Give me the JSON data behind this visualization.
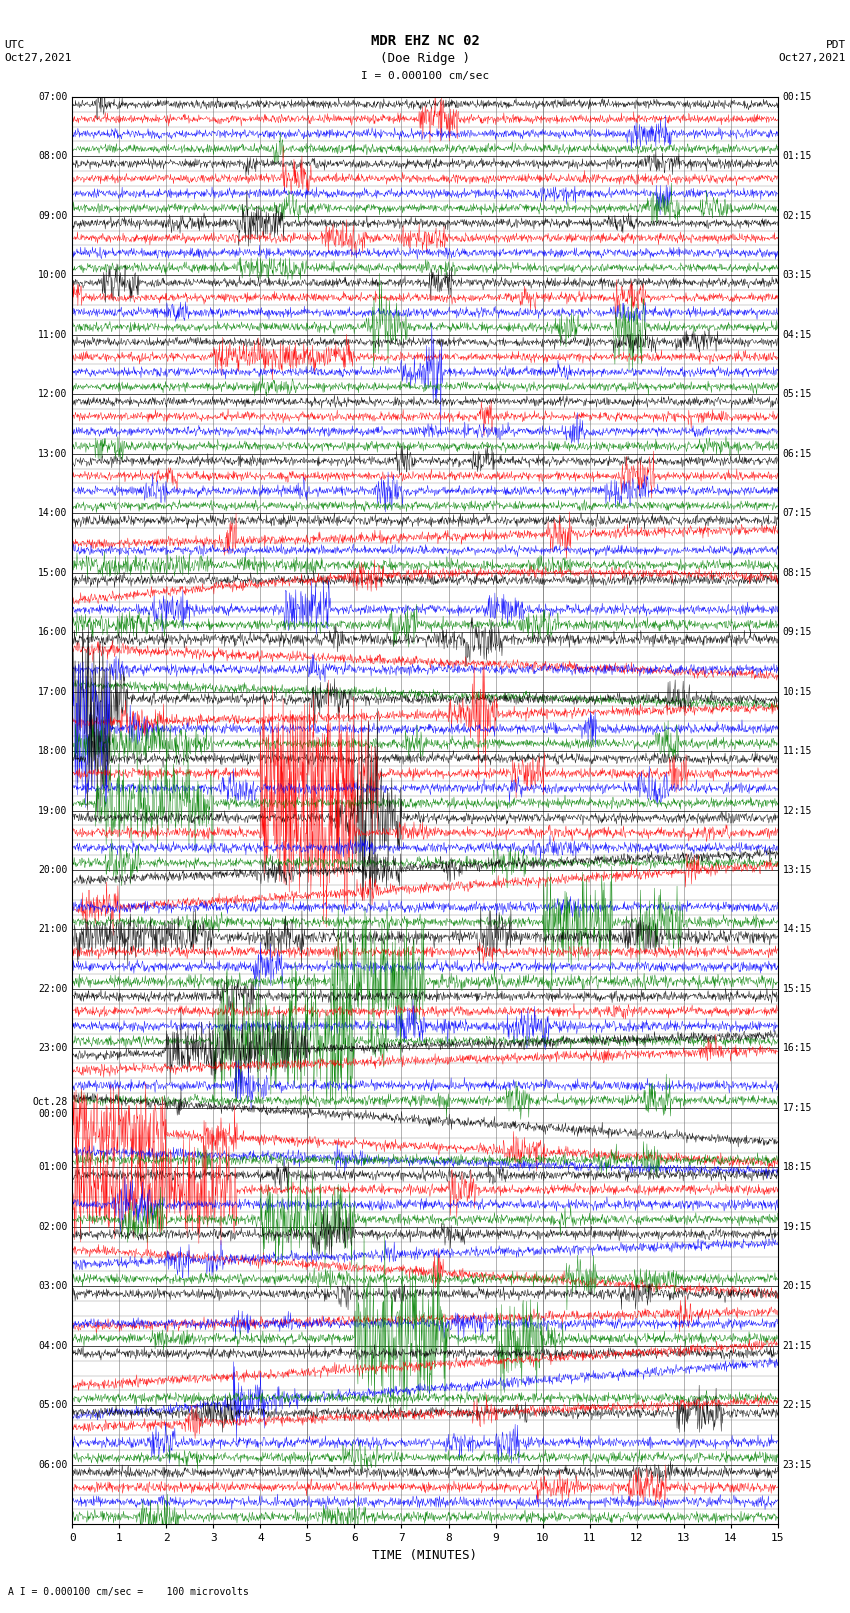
{
  "title_line1": "MDR EHZ NC 02",
  "title_line2": "(Doe Ridge )",
  "scale_label": "I = 0.000100 cm/sec",
  "bottom_label": "A I = 0.000100 cm/sec =    100 microvolts",
  "utc_label": "UTC",
  "utc_date": "Oct27,2021",
  "pdt_label": "PDT",
  "pdt_date": "Oct27,2021",
  "xlabel": "TIME (MINUTES)",
  "left_times": [
    "07:00",
    "08:00",
    "09:00",
    "10:00",
    "11:00",
    "12:00",
    "13:00",
    "14:00",
    "15:00",
    "16:00",
    "17:00",
    "18:00",
    "19:00",
    "20:00",
    "21:00",
    "22:00",
    "23:00",
    "Oct.28\n00:00",
    "01:00",
    "02:00",
    "03:00",
    "04:00",
    "05:00",
    "06:00"
  ],
  "right_times": [
    "00:15",
    "01:15",
    "02:15",
    "03:15",
    "04:15",
    "05:15",
    "06:15",
    "07:15",
    "08:15",
    "09:15",
    "10:15",
    "11:15",
    "12:15",
    "13:15",
    "14:15",
    "15:15",
    "16:15",
    "17:15",
    "18:15",
    "19:15",
    "20:15",
    "21:15",
    "22:15",
    "23:15"
  ],
  "num_rows": 24,
  "colors": [
    "black",
    "red",
    "blue",
    "green"
  ],
  "bg_color": "#ffffff",
  "grid_color": "#777777",
  "fig_width": 8.5,
  "fig_height": 16.13
}
